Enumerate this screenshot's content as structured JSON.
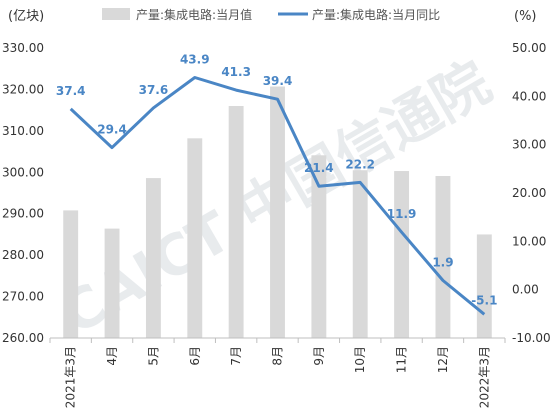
{
  "chart_data": {
    "type": "bar+line",
    "categories": [
      "2021年3月",
      "4月",
      "5月",
      "6月",
      "7月",
      "8月",
      "9月",
      "10月",
      "11月",
      "12月",
      "2022年3月"
    ],
    "series": [
      {
        "name": "产量:集成电路:当月值",
        "type": "bar",
        "axis": "left",
        "color": "#d9d9d9",
        "values": [
          290.8,
          286.4,
          298.6,
          308.2,
          316.0,
          320.7,
          304.1,
          300.5,
          300.3,
          299.1,
          285.0
        ]
      },
      {
        "name": "产量:集成电路:当月同比",
        "type": "line",
        "axis": "right",
        "color": "#4a86c5",
        "values": [
          37.4,
          29.4,
          37.6,
          43.9,
          41.3,
          39.4,
          21.4,
          22.2,
          11.9,
          1.9,
          -5.1
        ],
        "labels": [
          "37.4",
          "29.4",
          "37.6",
          "43.9",
          "41.3",
          "39.4",
          "21.4",
          "22.2",
          "11.9",
          "1.9",
          "-5.1"
        ]
      }
    ],
    "left_axis": {
      "unit": "(亿块)",
      "min": 260,
      "max": 330,
      "ticks": [
        "260.00",
        "270.00",
        "280.00",
        "290.00",
        "300.00",
        "310.00",
        "320.00",
        "330.00"
      ]
    },
    "right_axis": {
      "unit": "(%)",
      "min": -10,
      "max": 50,
      "ticks": [
        "-10.00",
        "0.00",
        "10.00",
        "20.00",
        "30.00",
        "40.00",
        "50.00"
      ]
    },
    "grid": false,
    "legend_position": "top"
  },
  "watermark": "CAICT 中国信通院"
}
